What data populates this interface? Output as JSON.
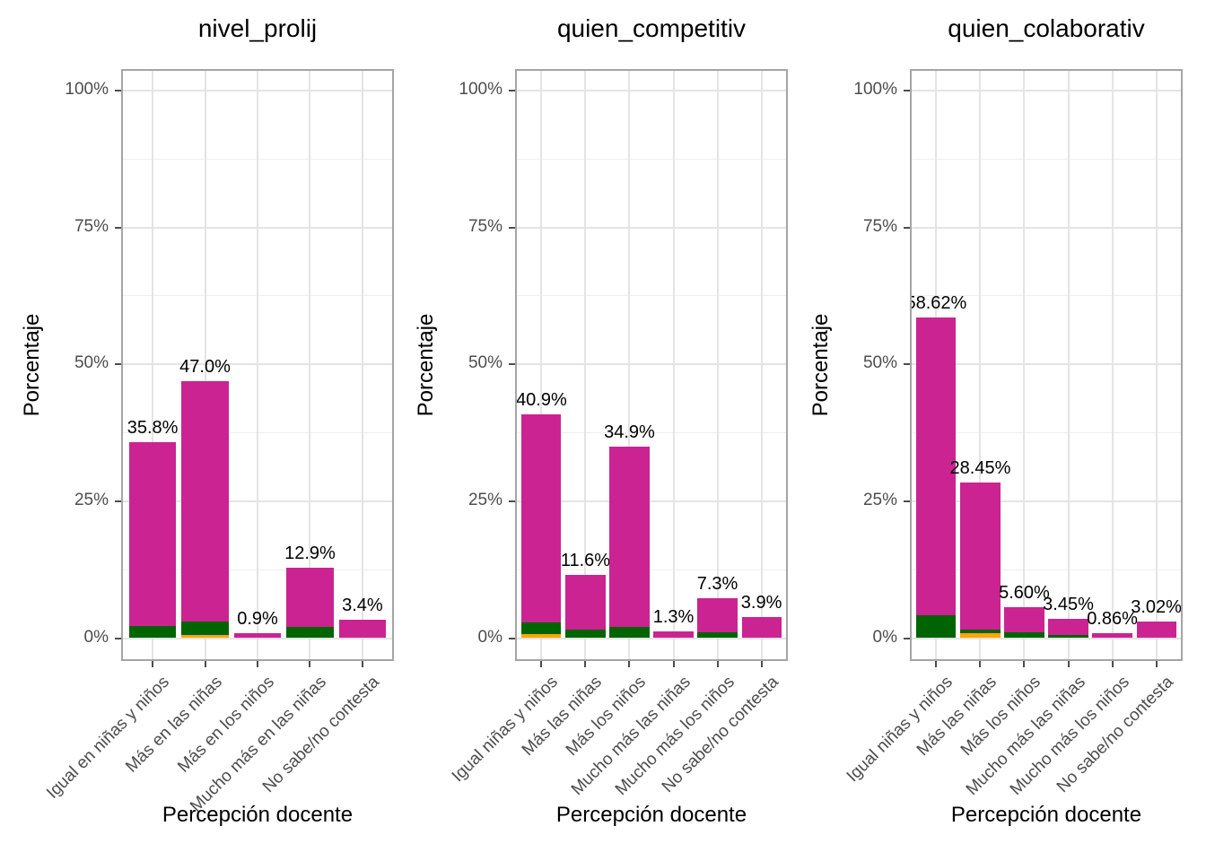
{
  "figure": {
    "background": "#ffffff",
    "colors": {
      "magenta": "#cb2392",
      "green": "#006400",
      "orange": "#ffa500"
    }
  },
  "chart_data": [
    {
      "type": "bar",
      "stacked": true,
      "title": "nivel_prolij",
      "xlabel": "Percepción docente",
      "ylabel": "Porcentaje",
      "ylim": [
        0,
        100
      ],
      "grid": true,
      "legend": "none",
      "y_ticks": {
        "values": [
          0,
          25,
          50,
          75,
          100
        ],
        "labels": [
          "0%",
          "25%",
          "50%",
          "75%",
          "100%"
        ]
      },
      "categories": [
        "Igual en niñas y niños",
        "Más en las niñas",
        "Más en los niños",
        "Mucho más en las niñas",
        "No sabe/no contesta"
      ],
      "totals": [
        35.8,
        47.0,
        0.9,
        12.9,
        3.4
      ],
      "total_labels": [
        "35.8%",
        "47.0%",
        "0.9%",
        "12.9%",
        "3.4%"
      ],
      "series": [
        {
          "name": "orange",
          "color": "#ffa500",
          "values": [
            0,
            0.5,
            0,
            0,
            0
          ]
        },
        {
          "name": "green",
          "color": "#006400",
          "values": [
            2.2,
            2.5,
            0,
            2.0,
            0
          ]
        },
        {
          "name": "magenta",
          "color": "#cb2392",
          "values": [
            33.6,
            44.0,
            0.9,
            10.9,
            3.4
          ]
        }
      ]
    },
    {
      "type": "bar",
      "stacked": true,
      "title": "quien_competitiv",
      "xlabel": "Percepción docente",
      "ylabel": "Porcentaje",
      "ylim": [
        0,
        100
      ],
      "grid": true,
      "legend": "none",
      "y_ticks": {
        "values": [
          0,
          25,
          50,
          75,
          100
        ],
        "labels": [
          "0%",
          "25%",
          "50%",
          "75%",
          "100%"
        ]
      },
      "categories": [
        "Igual niñas y niños",
        "Más las niñas",
        "Más los niños",
        "Mucho más las niñas",
        "Mucho más los niños",
        "No sabe/no contesta"
      ],
      "totals": [
        40.9,
        11.6,
        34.9,
        1.3,
        7.3,
        3.9
      ],
      "total_labels": [
        "40.9%",
        "11.6%",
        "34.9%",
        "1.3%",
        "7.3%",
        "3.9%"
      ],
      "series": [
        {
          "name": "orange",
          "color": "#ffa500",
          "values": [
            0.7,
            0,
            0,
            0,
            0,
            0
          ]
        },
        {
          "name": "green",
          "color": "#006400",
          "values": [
            2.1,
            1.5,
            2.0,
            0,
            1.0,
            0
          ]
        },
        {
          "name": "magenta",
          "color": "#cb2392",
          "values": [
            38.1,
            10.1,
            32.9,
            1.3,
            6.3,
            3.9
          ]
        }
      ]
    },
    {
      "type": "bar",
      "stacked": true,
      "title": "quien_colaborativ",
      "xlabel": "Percepción docente",
      "ylabel": "Porcentaje",
      "ylim": [
        0,
        100
      ],
      "grid": true,
      "legend": "none",
      "y_ticks": {
        "values": [
          0,
          25,
          50,
          75,
          100
        ],
        "labels": [
          "0%",
          "25%",
          "50%",
          "75%",
          "100%"
        ]
      },
      "categories": [
        "Igual niñas y niños",
        "Más las niñas",
        "Más los niños",
        "Mucho más las niñas",
        "Mucho más los niños",
        "No sabe/no contesta"
      ],
      "totals": [
        58.62,
        28.45,
        5.6,
        3.45,
        0.86,
        3.02
      ],
      "total_labels": [
        "58.62%",
        "28.45%",
        "5.60%",
        "3.45%",
        "0.86%",
        "3.02%"
      ],
      "series": [
        {
          "name": "orange",
          "color": "#ffa500",
          "values": [
            0,
            0.9,
            0,
            0,
            0,
            0
          ]
        },
        {
          "name": "green",
          "color": "#006400",
          "values": [
            4.2,
            0.7,
            1.1,
            0.6,
            0,
            0
          ]
        },
        {
          "name": "magenta",
          "color": "#cb2392",
          "values": [
            54.42,
            26.85,
            4.5,
            2.85,
            0.86,
            3.02
          ]
        }
      ]
    }
  ]
}
